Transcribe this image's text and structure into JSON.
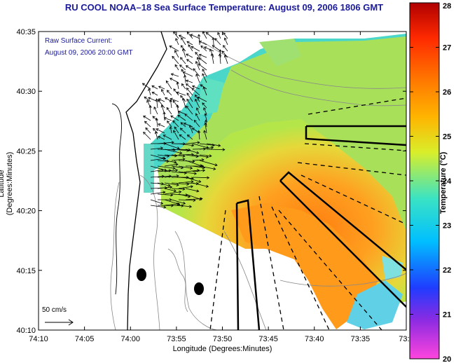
{
  "title": "RU COOL  NOAA–18  Sea Surface Temperature:  August 09, 2006 1806 GMT",
  "current_label": "Raw Surface Current:",
  "current_time": "August 09, 2006 20:00 GMT",
  "scale_label": "50 cm/s",
  "x_axis_label": "Longitude (Degrees:Minutes)",
  "y_axis_label": "Latitude (Degrees:Minutes)",
  "colorbar_label": "Temperature (°C)",
  "x_ticks": [
    "74:10",
    "74:05",
    "74:00",
    "73:55",
    "73:50",
    "73:45",
    "73:40",
    "73:35",
    "73:3"
  ],
  "y_ticks": [
    "40:35",
    "40:30",
    "40:25",
    "40:20",
    "40:15",
    "40:10"
  ],
  "colorbar_ticks": [
    "28",
    "27",
    "26",
    "25",
    "24",
    "23",
    "22",
    "21",
    "20"
  ],
  "colors": {
    "title": "#1a1a9a",
    "land": "#ffffff",
    "coast": "#000000",
    "bathymetry": "#888888"
  }
}
